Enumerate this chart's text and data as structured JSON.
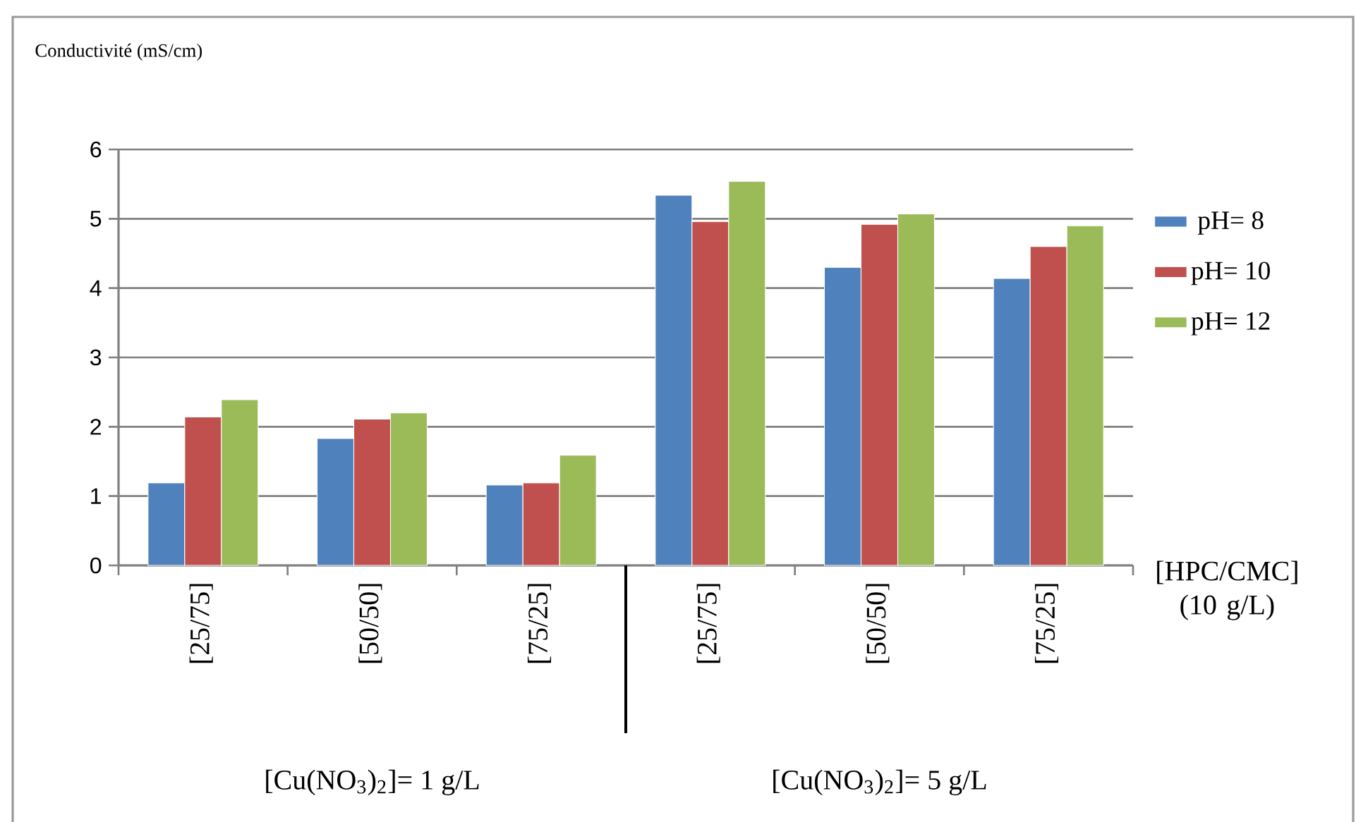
{
  "chart_data": {
    "type": "bar",
    "ylabel": "Conductivité (mS/cm)",
    "xlabel": "[HPC/CMC] (10 g/L)",
    "categories": [
      "[25/75]",
      "[50/50]",
      "[75/25]",
      "[25/75]",
      "[50/50]",
      "[75/25]"
    ],
    "series": [
      {
        "name": "pH= 8",
        "color": "#4f81bd",
        "values": [
          1.19,
          1.83,
          1.16,
          5.34,
          4.3,
          4.14
        ]
      },
      {
        "name": "pH= 10",
        "color": "#c0504d",
        "values": [
          2.14,
          2.11,
          1.19,
          4.96,
          4.92,
          4.6
        ]
      },
      {
        "name": "pH= 12",
        "color": "#9bbb59",
        "values": [
          2.39,
          2.2,
          1.59,
          5.54,
          5.07,
          4.9
        ]
      }
    ],
    "ylim": [
      0,
      6
    ],
    "yticks": [
      0,
      1,
      2,
      3,
      4,
      5,
      6
    ],
    "grid": "y",
    "legend": "right",
    "annotations": [
      "[Cu(NO$_{3}$)$_{2}$]= 1 g/L",
      "[Cu(NO$_{3}$)$_{2}$]= 5 g/L"
    ]
  }
}
